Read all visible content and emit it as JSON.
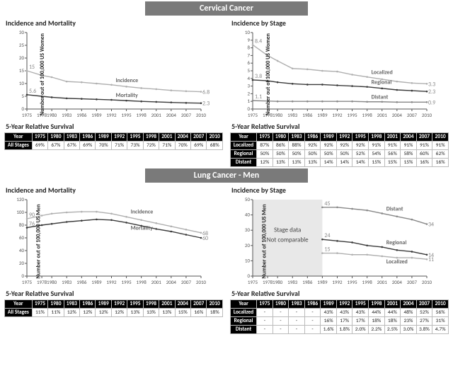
{
  "banners": {
    "cervical": "Cervical Cancer",
    "lung": "Lung Cancer - Men"
  },
  "subtitles": {
    "incmort": "Incidence and Mortality",
    "stage": "Incidence by Stage",
    "surv": "5-Year Relative Survival"
  },
  "ylabels": {
    "women": "Number out of 100,000 US Women",
    "men": "Number out of 100,000 US Men"
  },
  "years": [
    1975,
    1978,
    1980,
    1983,
    1986,
    1989,
    1992,
    1995,
    1998,
    2001,
    2004,
    2007,
    2010
  ],
  "tick_years": [
    1975,
    1978,
    1980,
    1983,
    1986,
    1989,
    1992,
    1995,
    1998,
    2001,
    2004,
    2007,
    2010
  ],
  "cerv_im": {
    "ylim": [
      0,
      30
    ],
    "yticks": [
      0,
      5,
      10,
      15,
      20,
      25,
      30
    ],
    "incidence": {
      "color": "#b0b0b0",
      "label": "Incidence",
      "data": [
        [
          1975,
          15
        ],
        [
          1978,
          13.2
        ],
        [
          1980,
          12.5
        ],
        [
          1983,
          10.8
        ],
        [
          1986,
          10.5
        ],
        [
          1989,
          10.0
        ],
        [
          1992,
          9.5
        ],
        [
          1995,
          8.8
        ],
        [
          1998,
          8.2
        ],
        [
          2001,
          7.8
        ],
        [
          2004,
          7.3
        ],
        [
          2007,
          7.0
        ],
        [
          2010,
          6.8
        ]
      ],
      "start_label": "15",
      "end_label": "6.8"
    },
    "mortality": {
      "color": "#3a3a3a",
      "label": "Mortality",
      "data": [
        [
          1975,
          5.6
        ],
        [
          1978,
          5.0
        ],
        [
          1980,
          4.6
        ],
        [
          1983,
          4.2
        ],
        [
          1986,
          4.0
        ],
        [
          1989,
          3.8
        ],
        [
          1992,
          3.6
        ],
        [
          1995,
          3.3
        ],
        [
          1998,
          3.0
        ],
        [
          2001,
          2.8
        ],
        [
          2004,
          2.6
        ],
        [
          2007,
          2.4
        ],
        [
          2010,
          2.3
        ]
      ],
      "start_label": "5.6",
      "end_label": "2.3"
    }
  },
  "cerv_stage": {
    "ylim": [
      0,
      10
    ],
    "yticks": [
      0,
      1,
      2,
      3,
      4,
      5,
      6,
      7,
      8,
      9,
      10
    ],
    "localized": {
      "color": "#b0b0b0",
      "label": "Localized",
      "data": [
        [
          1975,
          8.4
        ],
        [
          1978,
          7.0
        ],
        [
          1980,
          6.3
        ],
        [
          1983,
          5.3
        ],
        [
          1986,
          5.2
        ],
        [
          1989,
          5.0
        ],
        [
          1992,
          4.9
        ],
        [
          1995,
          4.5
        ],
        [
          1998,
          4.2
        ],
        [
          2001,
          3.9
        ],
        [
          2004,
          3.6
        ],
        [
          2007,
          3.4
        ],
        [
          2010,
          3.3
        ]
      ],
      "start_label": "8.4",
      "end_label": "3.3"
    },
    "regional": {
      "color": "#3a3a3a",
      "label": "Regional",
      "data": [
        [
          1975,
          3.8
        ],
        [
          1978,
          3.7
        ],
        [
          1980,
          3.5
        ],
        [
          1983,
          3.3
        ],
        [
          1986,
          3.2
        ],
        [
          1989,
          3.2
        ],
        [
          1992,
          3.1
        ],
        [
          1995,
          3.0
        ],
        [
          1998,
          2.9
        ],
        [
          2001,
          2.7
        ],
        [
          2004,
          2.5
        ],
        [
          2007,
          2.4
        ],
        [
          2010,
          2.3
        ]
      ],
      "start_label": "3.8",
      "end_label": "2.3"
    },
    "distant": {
      "color": "#888888",
      "label": "Distant",
      "data": [
        [
          1975,
          1.1
        ],
        [
          1978,
          1.05
        ],
        [
          1980,
          1.0
        ],
        [
          1983,
          1.0
        ],
        [
          1986,
          1.0
        ],
        [
          1989,
          1.0
        ],
        [
          1992,
          1.0
        ],
        [
          1995,
          1.0
        ],
        [
          1998,
          0.95
        ],
        [
          2001,
          0.95
        ],
        [
          2004,
          0.9
        ],
        [
          2007,
          0.9
        ],
        [
          2010,
          0.9
        ]
      ],
      "start_label": "1.1",
      "end_label": "0.9"
    }
  },
  "cerv_surv": {
    "cols": [
      "Year",
      "1975",
      "1980",
      "1983",
      "1986",
      "1989",
      "1992",
      "1995",
      "1998",
      "2001",
      "2004",
      "2007",
      "2010"
    ],
    "rows": [
      [
        "All Stages",
        "69%",
        "67%",
        "67%",
        "69%",
        "70%",
        "71%",
        "73%",
        "72%",
        "71%",
        "70%",
        "69%",
        "68%"
      ]
    ]
  },
  "cerv_stage_surv": {
    "cols": [
      "Year",
      "1975",
      "1980",
      "1983",
      "1986",
      "1989",
      "1992",
      "1995",
      "1998",
      "2001",
      "2004",
      "2007",
      "2010"
    ],
    "rows": [
      [
        "Localized",
        "87%",
        "86%",
        "88%",
        "92%",
        "92%",
        "92%",
        "92%",
        "91%",
        "91%",
        "91%",
        "91%",
        "91%"
      ],
      [
        "Regional",
        "50%",
        "50%",
        "50%",
        "50%",
        "50%",
        "50%",
        "52%",
        "54%",
        "56%",
        "58%",
        "60%",
        "62%"
      ],
      [
        "Distant",
        "12%",
        "13%",
        "13%",
        "13%",
        "14%",
        "14%",
        "14%",
        "15%",
        "15%",
        "15%",
        "16%",
        "16%"
      ]
    ]
  },
  "lung_im": {
    "ylim": [
      0,
      120
    ],
    "yticks": [
      0,
      20,
      40,
      60,
      80,
      100,
      120
    ],
    "incidence": {
      "color": "#b0b0b0",
      "label": "Incidence",
      "data": [
        [
          1975,
          90
        ],
        [
          1978,
          95
        ],
        [
          1980,
          98
        ],
        [
          1983,
          100
        ],
        [
          1986,
          101
        ],
        [
          1989,
          101
        ],
        [
          1992,
          98
        ],
        [
          1995,
          93
        ],
        [
          1998,
          88
        ],
        [
          2001,
          83
        ],
        [
          2004,
          78
        ],
        [
          2007,
          73
        ],
        [
          2010,
          68
        ]
      ],
      "start_label": "90",
      "end_label": "68"
    },
    "mortality": {
      "color": "#3a3a3a",
      "label": "Mortality",
      "data": [
        [
          1975,
          76
        ],
        [
          1978,
          80
        ],
        [
          1980,
          82
        ],
        [
          1983,
          85
        ],
        [
          1986,
          87
        ],
        [
          1989,
          89
        ],
        [
          1992,
          88
        ],
        [
          1995,
          84
        ],
        [
          1998,
          79
        ],
        [
          2001,
          74
        ],
        [
          2004,
          70
        ],
        [
          2007,
          65
        ],
        [
          2010,
          60
        ]
      ],
      "start_label": "76",
      "end_label": "60"
    }
  },
  "lung_stage": {
    "ylim": [
      0,
      50
    ],
    "yticks": [
      0,
      10,
      20,
      30,
      40,
      50
    ],
    "overlay": {
      "xstart": 1975,
      "xend": 1989,
      "text1": "Stage data",
      "text2": "Not comparable"
    },
    "distant": {
      "color": "#888888",
      "label": "Distant",
      "data": [
        [
          1989,
          45
        ],
        [
          1992,
          45
        ],
        [
          1995,
          44
        ],
        [
          1998,
          43
        ],
        [
          2001,
          41
        ],
        [
          2004,
          39
        ],
        [
          2007,
          37
        ],
        [
          2010,
          34
        ]
      ],
      "start_label": "45",
      "end_label": "34"
    },
    "regional": {
      "color": "#3a3a3a",
      "label": "Regional",
      "data": [
        [
          1989,
          24
        ],
        [
          1992,
          23
        ],
        [
          1995,
          22
        ],
        [
          1998,
          20
        ],
        [
          2001,
          19
        ],
        [
          2004,
          17
        ],
        [
          2007,
          16
        ],
        [
          2010,
          14
        ]
      ],
      "start_label": "24",
      "end_label": "14"
    },
    "localized": {
      "color": "#b0b0b0",
      "label": "Localized",
      "data": [
        [
          1989,
          15
        ],
        [
          1992,
          15
        ],
        [
          1995,
          14
        ],
        [
          1998,
          14
        ],
        [
          2001,
          13
        ],
        [
          2004,
          12
        ],
        [
          2007,
          12
        ],
        [
          2010,
          11
        ]
      ],
      "start_label": "15",
      "end_label": "11"
    }
  },
  "lung_surv": {
    "cols": [
      "Year",
      "1975",
      "1980",
      "1983",
      "1986",
      "1989",
      "1992",
      "1995",
      "1998",
      "2001",
      "2004",
      "2007",
      "2010"
    ],
    "rows": [
      [
        "All Stages",
        "11%",
        "11%",
        "12%",
        "12%",
        "12%",
        "12%",
        "13%",
        "13%",
        "13%",
        "15%",
        "16%",
        "18%"
      ]
    ]
  },
  "lung_stage_surv": {
    "cols": [
      "Year",
      "1975",
      "1980",
      "1983",
      "1986",
      "1989",
      "1992",
      "1995",
      "1998",
      "2001",
      "2004",
      "2007",
      "2010"
    ],
    "rows": [
      [
        "Localized",
        "-",
        "-",
        "-",
        "-",
        "43%",
        "43%",
        "43%",
        "44%",
        "44%",
        "48%",
        "52%",
        "56%"
      ],
      [
        "Regional",
        "-",
        "-",
        "-",
        "-",
        "16%",
        "17%",
        "17%",
        "18%",
        "18%",
        "23%",
        "27%",
        "31%"
      ],
      [
        "Distant",
        "-",
        "-",
        "-",
        "-",
        "1.6%",
        "1.8%",
        "2.0%",
        "2.2%",
        "2.5%",
        "3.0%",
        "3.8%",
        "4.7%"
      ]
    ]
  },
  "style": {
    "grid_color": "#cccccc",
    "axis_color": "#555555",
    "bg": "#ffffff",
    "tick_fontsize": 7
  }
}
